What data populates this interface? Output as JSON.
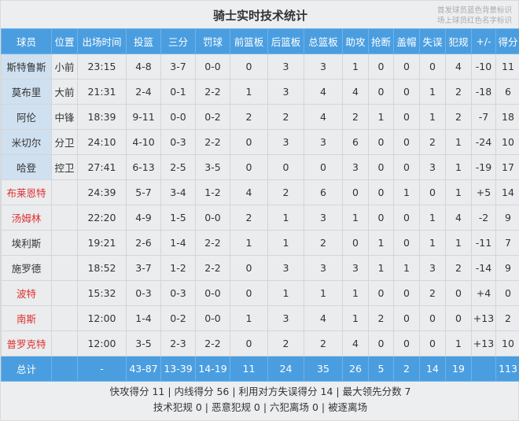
{
  "title": "骑士实时技术统计",
  "legend_note": [
    "首发球员蓝色背景标识",
    "场上球员红色名字标识"
  ],
  "colors": {
    "header": "#4a9ee0",
    "starter_bg": "#cfe0f0",
    "on_court_name": "#e0302e"
  },
  "columns": [
    "球员",
    "位置",
    "出场时间",
    "投篮",
    "三分",
    "罚球",
    "前篮板",
    "后篮板",
    "总篮板",
    "助攻",
    "抢断",
    "盖帽",
    "失误",
    "犯规",
    "+/-",
    "得分"
  ],
  "players": [
    {
      "name": "斯特鲁斯",
      "starter": true,
      "on_court": false,
      "cells": [
        "小前",
        "23:15",
        "4-8",
        "3-7",
        "0-0",
        "0",
        "3",
        "3",
        "1",
        "0",
        "0",
        "0",
        "4",
        "-10",
        "11"
      ]
    },
    {
      "name": "莫布里",
      "starter": true,
      "on_court": false,
      "cells": [
        "大前",
        "21:31",
        "2-4",
        "0-1",
        "2-2",
        "1",
        "3",
        "4",
        "4",
        "0",
        "0",
        "1",
        "2",
        "-18",
        "6"
      ]
    },
    {
      "name": "阿伦",
      "starter": true,
      "on_court": false,
      "cells": [
        "中锋",
        "18:39",
        "9-11",
        "0-0",
        "0-2",
        "2",
        "2",
        "4",
        "2",
        "1",
        "0",
        "1",
        "2",
        "-7",
        "18"
      ]
    },
    {
      "name": "米切尔",
      "starter": true,
      "on_court": false,
      "cells": [
        "分卫",
        "24:10",
        "4-10",
        "0-3",
        "2-2",
        "0",
        "3",
        "3",
        "6",
        "0",
        "0",
        "2",
        "1",
        "-24",
        "10"
      ]
    },
    {
      "name": "哈登",
      "starter": true,
      "on_court": false,
      "cells": [
        "控卫",
        "27:41",
        "6-13",
        "2-5",
        "3-5",
        "0",
        "0",
        "0",
        "3",
        "0",
        "0",
        "3",
        "1",
        "-19",
        "17"
      ]
    },
    {
      "name": "布莱恩特",
      "starter": false,
      "on_court": true,
      "cells": [
        "",
        "24:39",
        "5-7",
        "3-4",
        "1-2",
        "4",
        "2",
        "6",
        "0",
        "0",
        "1",
        "0",
        "1",
        "+5",
        "14"
      ]
    },
    {
      "name": "汤姆林",
      "starter": false,
      "on_court": true,
      "cells": [
        "",
        "22:20",
        "4-9",
        "1-5",
        "0-0",
        "2",
        "1",
        "3",
        "1",
        "0",
        "0",
        "1",
        "4",
        "-2",
        "9"
      ]
    },
    {
      "name": "埃利斯",
      "starter": false,
      "on_court": false,
      "cells": [
        "",
        "19:21",
        "2-6",
        "1-4",
        "2-2",
        "1",
        "1",
        "2",
        "0",
        "1",
        "0",
        "1",
        "1",
        "-11",
        "7"
      ]
    },
    {
      "name": "施罗德",
      "starter": false,
      "on_court": false,
      "cells": [
        "",
        "18:52",
        "3-7",
        "1-2",
        "2-2",
        "0",
        "3",
        "3",
        "3",
        "1",
        "1",
        "3",
        "2",
        "-14",
        "9"
      ]
    },
    {
      "name": "波特",
      "starter": false,
      "on_court": true,
      "cells": [
        "",
        "15:32",
        "0-3",
        "0-3",
        "0-0",
        "0",
        "1",
        "1",
        "1",
        "0",
        "0",
        "2",
        "0",
        "+4",
        "0"
      ]
    },
    {
      "name": "南斯",
      "starter": false,
      "on_court": true,
      "cells": [
        "",
        "12:00",
        "1-4",
        "0-2",
        "0-0",
        "1",
        "3",
        "4",
        "1",
        "2",
        "0",
        "0",
        "0",
        "+13",
        "2"
      ]
    },
    {
      "name": "普罗克特",
      "starter": false,
      "on_court": true,
      "cells": [
        "",
        "12:00",
        "3-5",
        "2-3",
        "2-2",
        "0",
        "2",
        "2",
        "4",
        "0",
        "0",
        "0",
        "1",
        "+13",
        "10"
      ]
    }
  ],
  "total": {
    "label": "总计",
    "cells": [
      "",
      "-",
      "43-87",
      "13-39",
      "14-19",
      "11",
      "24",
      "35",
      "26",
      "5",
      "2",
      "14",
      "19",
      "",
      "113"
    ]
  },
  "footer": [
    "快攻得分 11 | 内线得分 56 | 利用对方失误得分 14 | 最大领先分数 7",
    "技术犯规 0 | 恶意犯规 0 | 六犯离场 0 | 被逐离场"
  ]
}
